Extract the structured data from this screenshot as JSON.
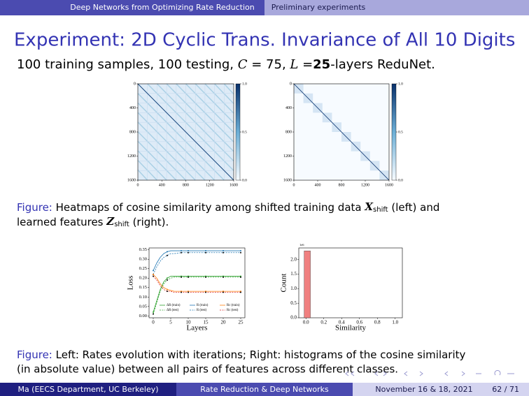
{
  "header": {
    "section": "Deep Networks from Optimizing Rate Reduction",
    "subsection": "Preliminary experiments"
  },
  "title": "Experiment: 2D Cyclic Trans. Invariance of All 10 Digits",
  "subtitle": [
    "100 training samples, 100 testing, ",
    "C",
    " = 75, ",
    "L",
    " =",
    "25",
    "-layers ReduNet."
  ],
  "heatmaps": [
    {
      "xlim": [
        0,
        1600
      ],
      "ylim": [
        0,
        1600
      ],
      "xticks": [
        0,
        400,
        800,
        1200,
        1600
      ],
      "yticks": [
        0,
        400,
        800,
        1200,
        1600
      ],
      "clim": [
        0,
        1
      ],
      "colorbar_ticks": [
        {
          "value": 0,
          "label": "0.0"
        },
        {
          "value": 0.5,
          "label": "0.5"
        },
        {
          "value": 1,
          "label": "1.0"
        }
      ]
    },
    {
      "xlim": [
        0,
        1600
      ],
      "ylim": [
        0,
        1600
      ],
      "xticks": [
        0,
        400,
        800,
        1200,
        1600
      ],
      "yticks": [
        0,
        400,
        800,
        1200,
        1600
      ],
      "clim": [
        0,
        1
      ],
      "colorbar_ticks": [
        {
          "value": 0,
          "label": "0.0"
        },
        {
          "value": 0.5,
          "label": "0.5"
        },
        {
          "value": 1,
          "label": "1.0"
        }
      ]
    }
  ],
  "caption1": {
    "label": "Figure:",
    "parts": [
      "Heatmaps of cosine similarity among shifted training data ",
      "X",
      "shift",
      " (left) and",
      "learned features ",
      "Z",
      "shift",
      " (right)."
    ]
  },
  "rates_chart": {
    "type": "line",
    "xlabel": "Layers",
    "ylabel": "Loss",
    "xlim": [
      -1.2,
      26.2
    ],
    "ylim": [
      -0.01,
      0.36
    ],
    "xticks": [
      0,
      5,
      10,
      15,
      20,
      25
    ],
    "yticks": [
      {
        "value": 0,
        "label": "0.00"
      },
      {
        "value": 0.05,
        "label": "0.05"
      },
      {
        "value": 0.1,
        "label": "0.10"
      },
      {
        "value": 0.15,
        "label": "0.15"
      },
      {
        "value": 0.2,
        "label": "0.20"
      },
      {
        "value": 0.25,
        "label": "0.25"
      },
      {
        "value": 0.3,
        "label": "0.30"
      },
      {
        "value": 0.35,
        "label": "0.35"
      }
    ],
    "x": [
      0,
      1,
      2,
      3,
      4,
      5,
      6,
      8,
      10,
      15,
      20,
      25
    ],
    "series": [
      {
        "name": "ΔR (train)",
        "color": "#2ca02c",
        "dash": false,
        "values": [
          0.02,
          0.08,
          0.14,
          0.18,
          0.2,
          0.21,
          0.21,
          0.21,
          0.21,
          0.21,
          0.21,
          0.21
        ]
      },
      {
        "name": "ΔR (test)",
        "color": "#2ca02c",
        "dash": true,
        "values": [
          0.01,
          0.07,
          0.13,
          0.17,
          0.19,
          0.2,
          0.205,
          0.205,
          0.205,
          0.205,
          0.205,
          0.205
        ]
      },
      {
        "name": "R (train)",
        "color": "#1f77b4",
        "dash": false,
        "values": [
          0.24,
          0.28,
          0.31,
          0.33,
          0.34,
          0.345,
          0.345,
          0.345,
          0.345,
          0.345,
          0.345,
          0.345
        ]
      },
      {
        "name": "R (test)",
        "color": "#1f77b4",
        "dash": true,
        "values": [
          0.22,
          0.26,
          0.29,
          0.31,
          0.32,
          0.33,
          0.33,
          0.335,
          0.335,
          0.335,
          0.335,
          0.335
        ]
      },
      {
        "name": "Rc (train)",
        "color": "#ff7f0e",
        "dash": false,
        "values": [
          0.22,
          0.2,
          0.17,
          0.15,
          0.14,
          0.135,
          0.13,
          0.13,
          0.13,
          0.13,
          0.13,
          0.13
        ]
      },
      {
        "name": "Rc (test)",
        "color": "#d62728",
        "dash": true,
        "values": [
          0.21,
          0.19,
          0.16,
          0.14,
          0.13,
          0.13,
          0.125,
          0.125,
          0.125,
          0.125,
          0.125,
          0.125
        ]
      }
    ]
  },
  "histogram": {
    "type": "histogram",
    "xlabel": "Similarity",
    "ylabel": "Count",
    "scale_label": "1e6",
    "xlim": [
      -0.08,
      1.08
    ],
    "ylim": [
      0,
      2.4
    ],
    "xticks": [
      {
        "value": 0,
        "label": "0.0"
      },
      {
        "value": 0.2,
        "label": "0.2"
      },
      {
        "value": 0.4,
        "label": "0.4"
      },
      {
        "value": 0.6,
        "label": "0.6"
      },
      {
        "value": 0.8,
        "label": "0.8"
      },
      {
        "value": 1,
        "label": "1.0"
      }
    ],
    "yticks": [
      {
        "value": 0,
        "label": "0.0"
      },
      {
        "value": 0.5,
        "label": "0.5"
      },
      {
        "value": 1,
        "label": "1.0"
      },
      {
        "value": 1.5,
        "label": "1.5"
      },
      {
        "value": 2,
        "label": "2.0"
      }
    ],
    "bins": [
      -0.02,
      0.05
    ],
    "counts": [
      2.3
    ],
    "color": "#f08080"
  },
  "caption2": {
    "label": "Figure:",
    "lines": [
      "Left: Rates evolution with iterations; Right: histograms of the cosine similarity",
      "(in absolute value) between all pairs of features across different classes."
    ]
  },
  "footer": {
    "author": "Ma  (EECS Department, UC Berkeley)",
    "short_title": "Rate Reduction & Deep Networks",
    "date": "November 16 & 18, 2021",
    "page": "62 / 71"
  }
}
